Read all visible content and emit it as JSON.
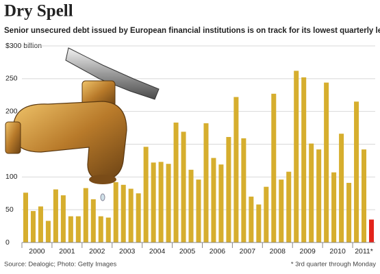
{
  "chart_data": {
    "type": "bar",
    "title": "Dry Spell",
    "subtitle": "Senior unsecured debt issued by European financial institutions is on track for its lowest quarterly level in a decade.",
    "source": "Source: Dealogic; Photo: Getty Images",
    "footnote": "* 3rd quarter through Monday",
    "categories": [
      "2000",
      null,
      null,
      null,
      "2001",
      null,
      null,
      null,
      "2002",
      null,
      null,
      null,
      "2003",
      null,
      null,
      null,
      "2004",
      null,
      null,
      null,
      "2005",
      null,
      null,
      null,
      "2006",
      null,
      null,
      null,
      "2007",
      null,
      null,
      null,
      "2008",
      null,
      null,
      null,
      "2009",
      null,
      null,
      null,
      "2010",
      null,
      null,
      null,
      "2011*",
      null,
      null
    ],
    "values": [
      76,
      48,
      55,
      33,
      81,
      72,
      40,
      40,
      83,
      66,
      40,
      38,
      92,
      88,
      82,
      75,
      146,
      122,
      123,
      120,
      183,
      169,
      111,
      96,
      182,
      129,
      119,
      161,
      222,
      159,
      70,
      58,
      85,
      227,
      96,
      108,
      262,
      252,
      151,
      142,
      244,
      107,
      166,
      91,
      215,
      142,
      35
    ],
    "color": "#d6ae2e",
    "highlight": {
      "index": 46,
      "color": "#e3241b"
    },
    "ylim": [
      0,
      300
    ],
    "yticks": [
      0,
      50,
      100,
      150,
      200,
      250,
      {
        "value": 300,
        "label": "$300 billion"
      }
    ],
    "grid": true
  }
}
